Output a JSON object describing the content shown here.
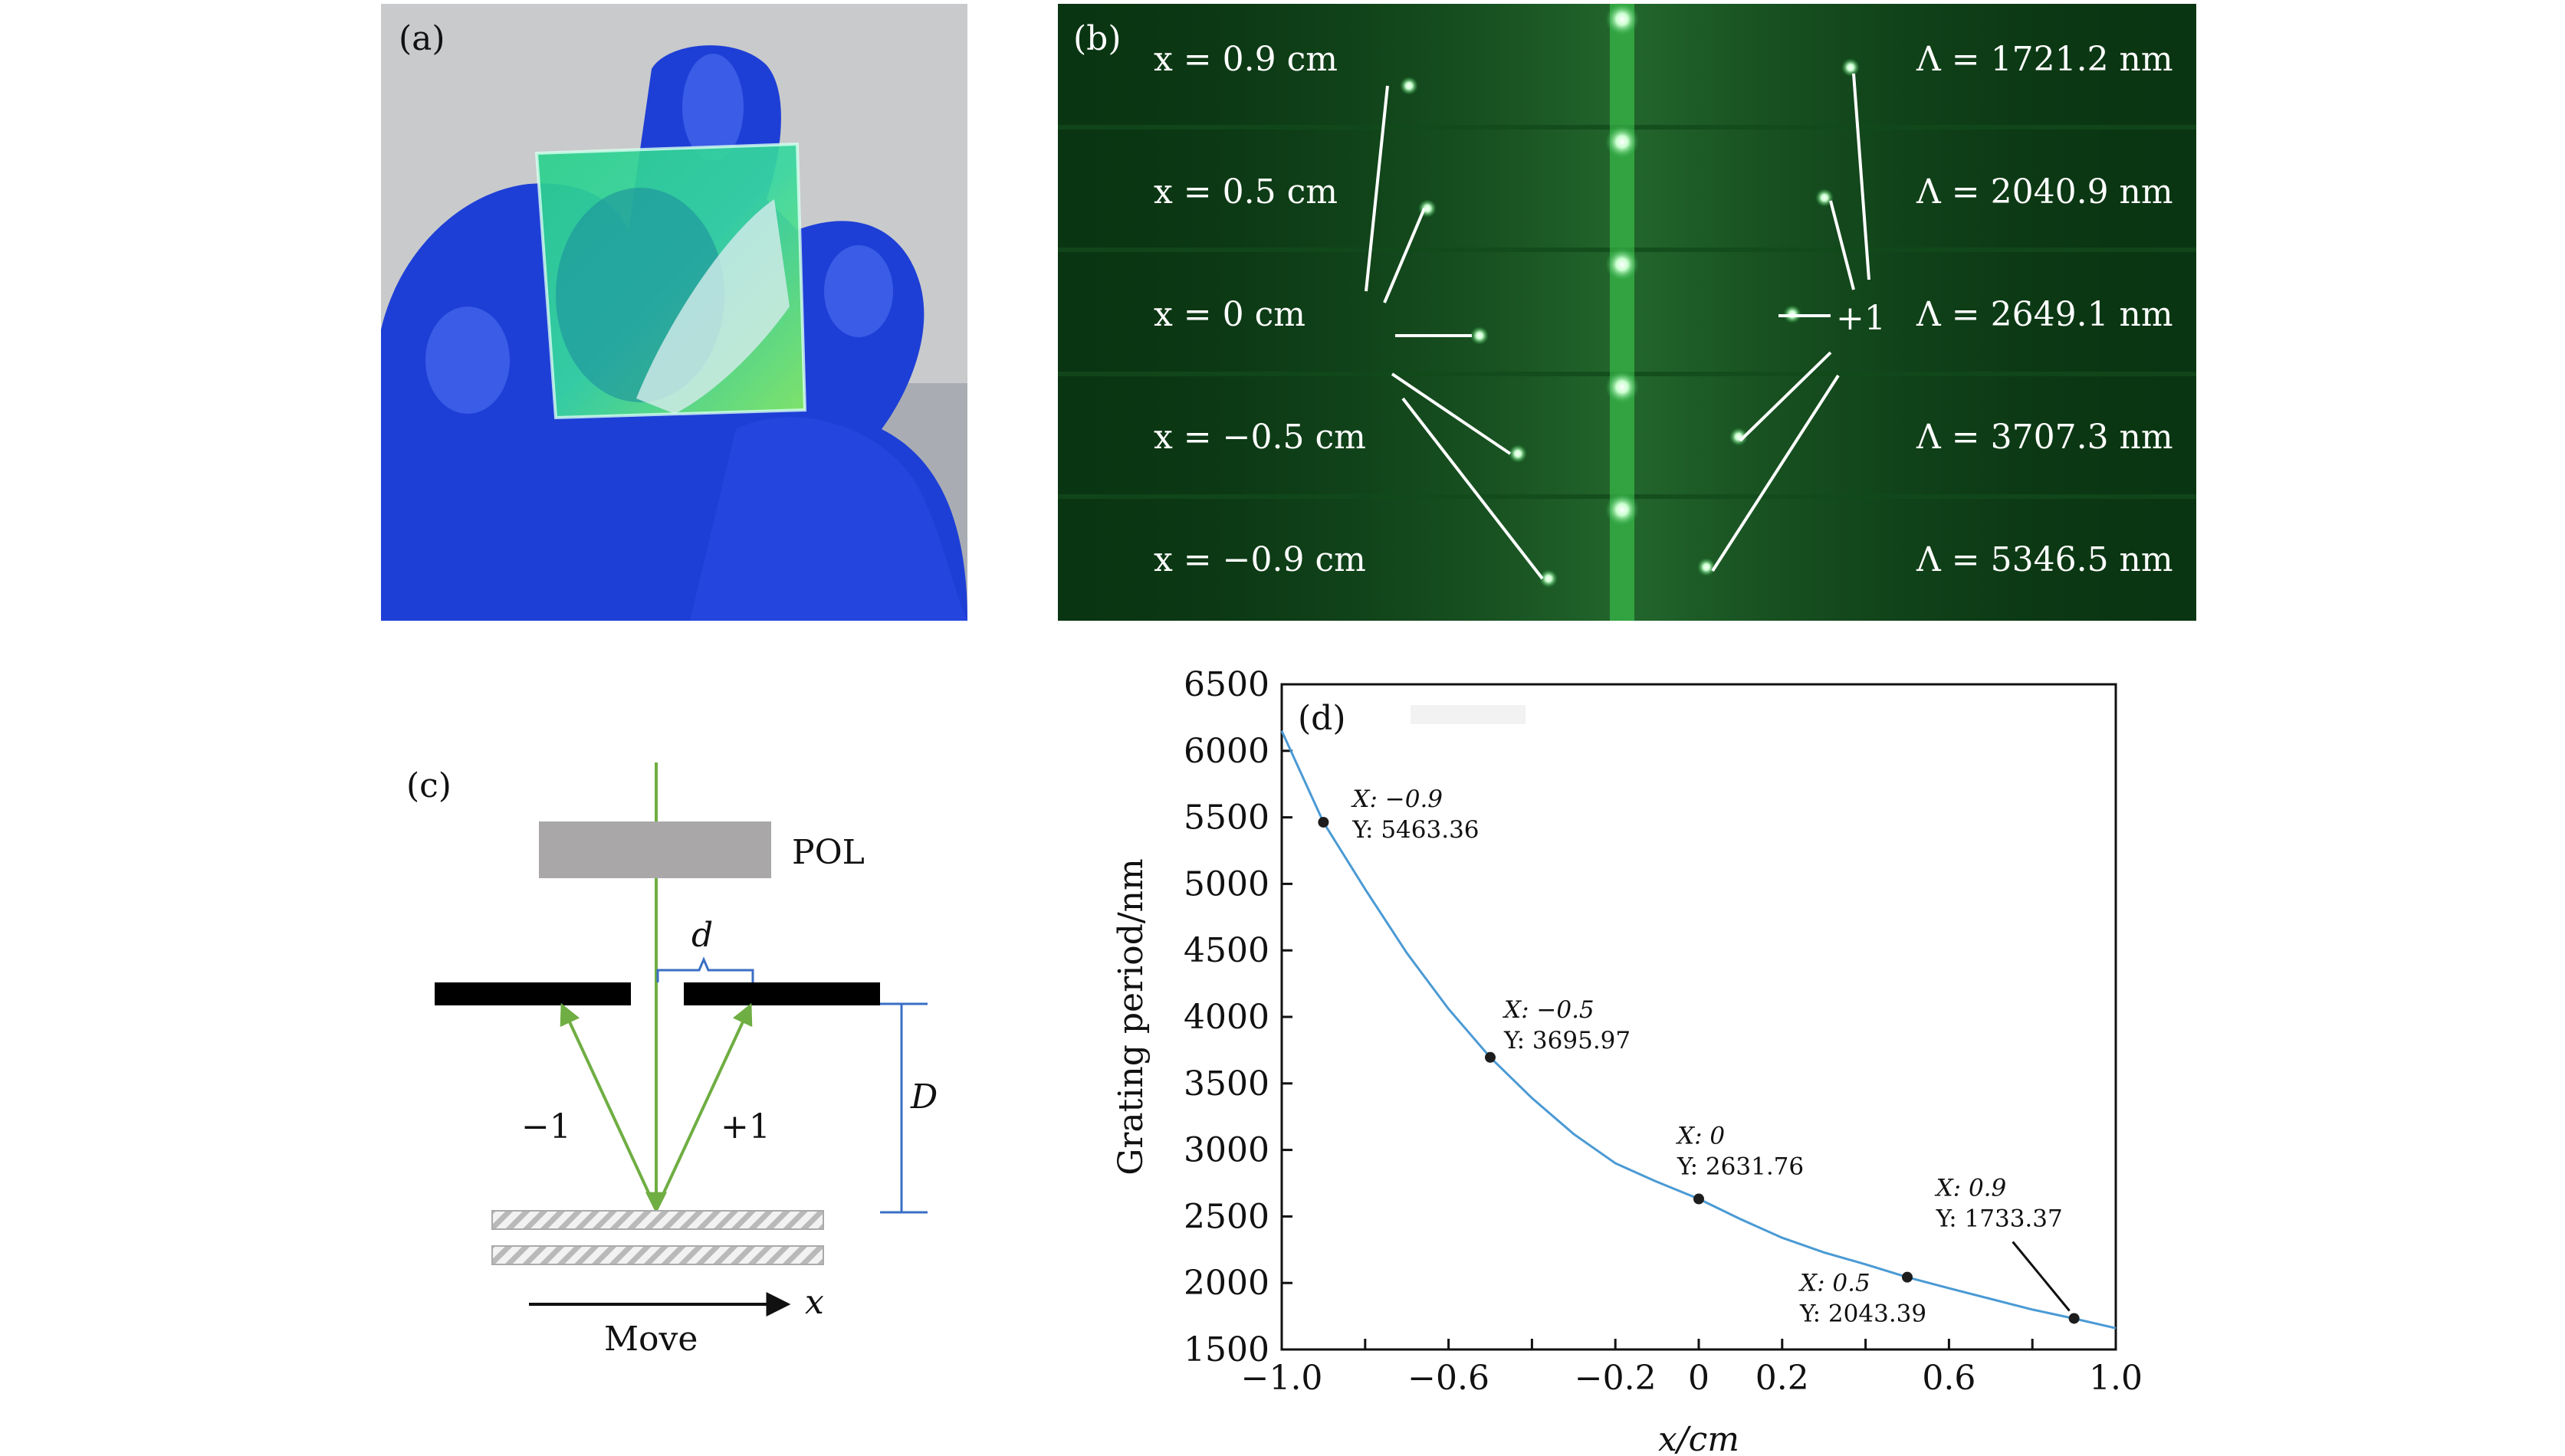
{
  "panels": {
    "a": {
      "label": "(a)"
    },
    "b": {
      "label": "(b)",
      "rows": [
        {
          "x_text": "x = 0.9 cm",
          "period_text": "Λ = 1721.2 nm"
        },
        {
          "x_text": "x = 0.5 cm",
          "period_text": "Λ = 2040.9 nm"
        },
        {
          "x_text": "x = 0 cm",
          "period_text": "Λ = 2649.1 nm"
        },
        {
          "x_text": "x = −0.5 cm",
          "period_text": "Λ = 3707.3 nm"
        },
        {
          "x_text": "x = −0.9 cm",
          "period_text": "Λ = 5346.5 nm"
        }
      ],
      "order_label": "+1"
    },
    "c": {
      "label": "(c)",
      "pol": "POL",
      "d": "d",
      "D": "D",
      "minus_one": "−1",
      "plus_one": "+1",
      "move": "Move",
      "x_axis": "x"
    }
  },
  "chart_data": {
    "label": "(d)",
    "type": "line",
    "xlabel": "x/cm",
    "ylabel": "Grating period/nm",
    "xlim": [
      -1.0,
      1.0
    ],
    "ylim": [
      1500,
      6500
    ],
    "xticks": [
      {
        "v": -1.0,
        "t": "−1.0"
      },
      {
        "v": -0.6,
        "t": "−0.6"
      },
      {
        "v": -0.2,
        "t": "−0.2"
      },
      {
        "v": 0,
        "t": "0"
      },
      {
        "v": 0.2,
        "t": "0.2"
      },
      {
        "v": 0.6,
        "t": "0.6"
      },
      {
        "v": 1.0,
        "t": "1.0"
      }
    ],
    "xminor": [
      -0.8,
      -0.4,
      0.4,
      0.8
    ],
    "yticks": [
      1500,
      2000,
      2500,
      3000,
      3500,
      4000,
      4500,
      5000,
      5500,
      6000,
      6500
    ],
    "line_color": "#4a9ad4",
    "curve_x": [
      -1.0,
      -0.9,
      -0.8,
      -0.7,
      -0.6,
      -0.5,
      -0.4,
      -0.3,
      -0.2,
      -0.1,
      0.0,
      0.1,
      0.2,
      0.3,
      0.4,
      0.5,
      0.6,
      0.7,
      0.8,
      0.9,
      1.0
    ],
    "curve_y": [
      6150,
      5463,
      4960,
      4480,
      4060,
      3696,
      3390,
      3120,
      2900,
      2760,
      2632,
      2480,
      2340,
      2230,
      2140,
      2043,
      1960,
      1880,
      1800,
      1733,
      1660
    ],
    "points": [
      {
        "x": -0.9,
        "y": 5463.36,
        "x_text": "X: −0.9",
        "y_text": "Y: 5463.36"
      },
      {
        "x": -0.5,
        "y": 3695.97,
        "x_text": "X: −0.5",
        "y_text": "Y: 3695.97"
      },
      {
        "x": 0,
        "y": 2631.76,
        "x_text": "X: 0",
        "y_text": "Y: 2631.76"
      },
      {
        "x": 0.5,
        "y": 2043.39,
        "x_text": "X: 0.5",
        "y_text": "Y: 2043.39"
      },
      {
        "x": 0.9,
        "y": 1733.37,
        "x_text": "X: 0.9",
        "y_text": "Y: 1733.37"
      }
    ]
  }
}
